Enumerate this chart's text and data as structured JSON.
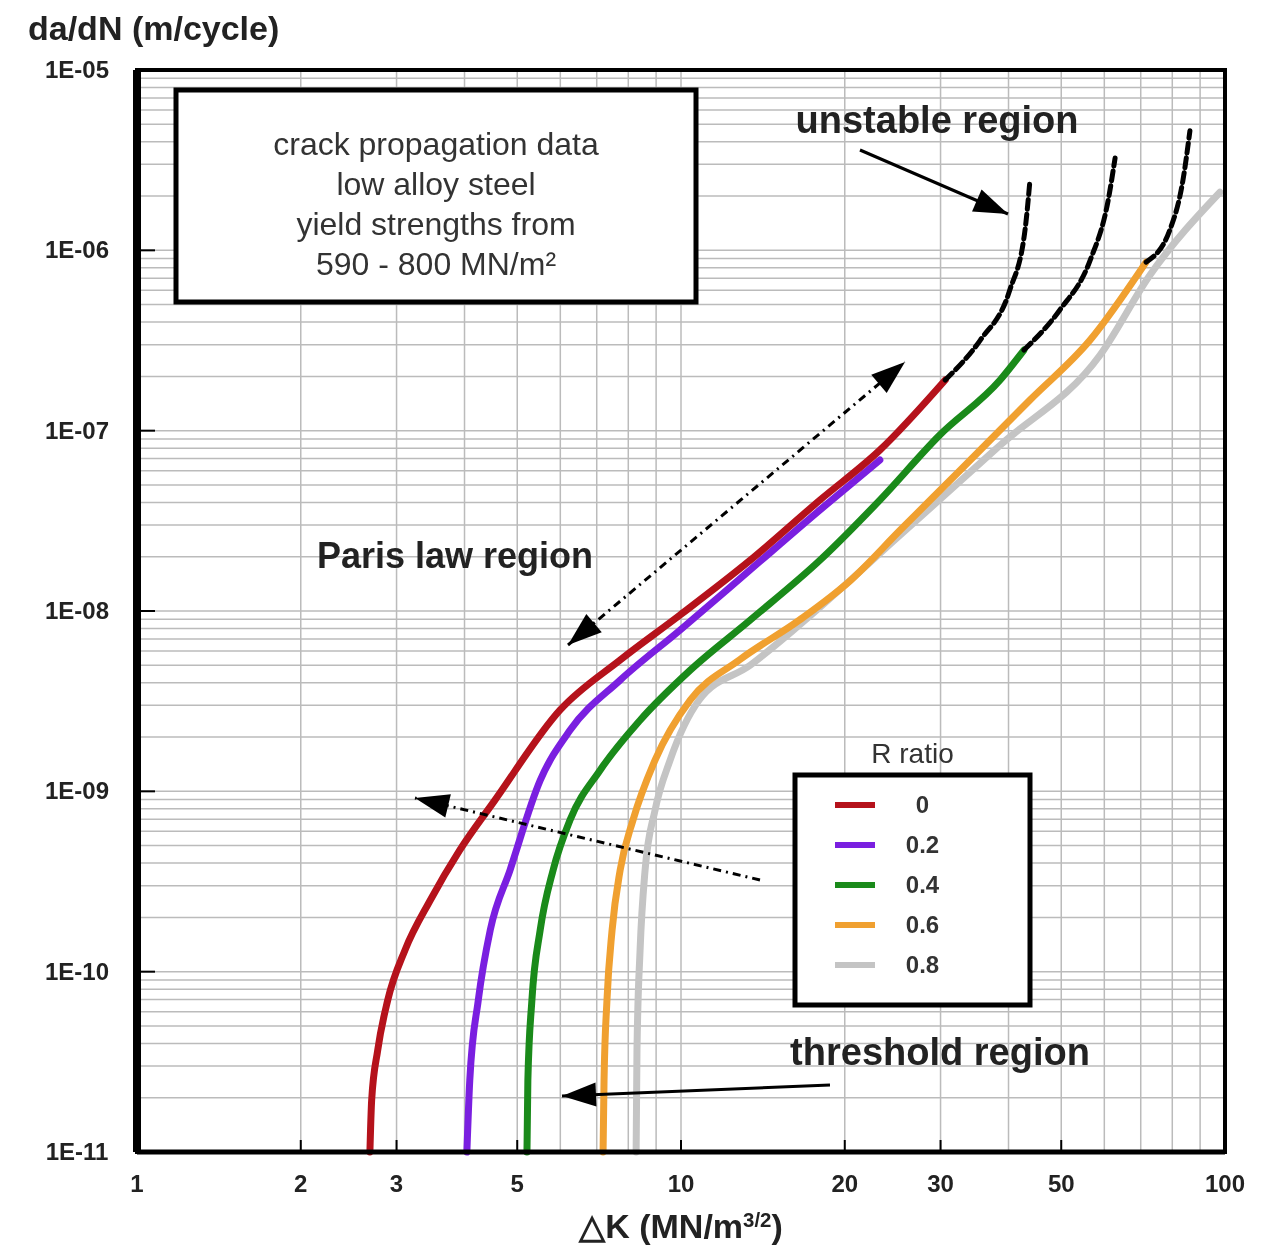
{
  "chart_data": {
    "type": "line",
    "xlabel": "△K  (MN/m$^{3/2}$)",
    "ylabel": "da/dN (m/cycle)",
    "legend_title": "R ratio",
    "legend": "bottom right",
    "log": "xy",
    "grid": true,
    "xlim": [
      1,
      100
    ],
    "ylim": [
      1e-11,
      1e-05
    ],
    "xticks": [
      1,
      2,
      3,
      5,
      10,
      20,
      30,
      50,
      100
    ],
    "yticks": [
      {
        "value": 1e-11,
        "label": "1E-11"
      },
      {
        "value": 1e-10,
        "label": "1E-10"
      },
      {
        "value": 1e-09,
        "label": "1E-09"
      },
      {
        "value": 1e-08,
        "label": "1E-08"
      },
      {
        "value": 1e-07,
        "label": "1E-07"
      },
      {
        "value": 1e-06,
        "label": "1E-06"
      },
      {
        "value": 1e-05,
        "label": "1E-05"
      }
    ],
    "annotations": [
      "crack propagation data\nlow alloy steel\nyield strengths from\n590 - 800 MN/m²",
      "unstable region",
      "Paris law region",
      "threshold region"
    ],
    "series": [
      {
        "name": "0.8",
        "color": "#c4c4c4",
        "x": [
          8.27,
          8.3,
          8.41,
          8.59,
          8.96,
          9.55,
          10.8,
          13.4,
          16.5,
          25.3,
          38.6,
          58.9,
          72.8,
          97.9
        ],
        "values": [
          1e-11,
          3.67e-11,
          1.32e-10,
          3.66e-10,
          7.87e-10,
          1.49e-09,
          3.21e-09,
          5e-09,
          8.35e-09,
          2.64e-08,
          8.3e-08,
          2.62e-07,
          7.3e-07,
          2.1e-06
        ]
      },
      {
        "name": "0.6",
        "color": "#f0a030",
        "x": [
          7.19,
          7.22,
          7.31,
          7.47,
          7.73,
          8.16,
          8.96,
          10.4,
          12.8,
          16.5,
          20.5,
          25.3,
          32.6,
          43.8,
          56.5,
          71.6
        ],
        "values": [
          1e-11,
          2.5e-11,
          6.95e-11,
          1.7e-10,
          3.66e-10,
          6.92e-10,
          1.49e-09,
          3.21e-09,
          5.35e-09,
          8.9e-09,
          1.48e-08,
          2.81e-08,
          6.04e-08,
          1.48e-07,
          3.18e-07,
          8.6e-07
        ]
      },
      {
        "name": "0.4",
        "color": "#1a8a1a",
        "x": [
          5.21,
          5.23,
          5.32,
          5.51,
          5.82,
          6.25,
          7.1,
          8.41,
          10.4,
          13.4,
          18,
          23.2,
          29.9,
          38.6,
          42.7
        ],
        "values": [
          1e-11,
          2.5e-11,
          6.95e-11,
          1.7e-10,
          3.66e-10,
          6.92e-10,
          1.31e-09,
          2.48e-09,
          4.7e-09,
          8.9e-09,
          1.91e-08,
          4.12e-08,
          9.46e-08,
          1.91e-07,
          2.8e-07
        ]
      },
      {
        "name": "0.2",
        "color": "#7a1fe0",
        "x": [
          4.04,
          4.09,
          4.24,
          4.46,
          4.85,
          5.51,
          6.25,
          7.73,
          9.96,
          13.4,
          18,
          23.2
        ],
        "values": [
          1e-11,
          2.5e-11,
          6.95e-11,
          1.7e-10,
          3.66e-10,
          1.15e-09,
          2.18e-09,
          4.14e-09,
          7.84e-09,
          1.69e-08,
          3.63e-08,
          6.87e-08
        ]
      },
      {
        "name": "0",
        "color": "#b5121b",
        "x": [
          2.68,
          2.7,
          2.77,
          2.89,
          3.11,
          3.46,
          3.92,
          4.55,
          5.99,
          7.73,
          9.96,
          13.4,
          18,
          23.2,
          30.6
        ],
        "values": [
          1e-11,
          1.94e-11,
          3.67e-11,
          6.95e-11,
          1.32e-10,
          2.49e-10,
          4.72e-10,
          8.94e-10,
          2.82e-09,
          5.35e-09,
          9.5e-09,
          1.91e-08,
          4.12e-08,
          7.8e-08,
          1.91e-07
        ]
      },
      {
        "color": "#000000",
        "line_style": "dashed",
        "x": [
          30.6,
          35.5,
          40.2,
          42.9,
          43.8
        ],
        "values": [
          1.91e-07,
          3.18e-07,
          6e-07,
          1.3e-06,
          2.45e-06
        ]
      },
      {
        "color": "#000000",
        "line_style": "dashed",
        "x": [
          42.7,
          49.7,
          56.5,
          61,
          62.8
        ],
        "values": [
          2.8e-07,
          4.67e-07,
          8.8e-07,
          1.9e-06,
          3.25e-06
        ]
      },
      {
        "color": "#000000",
        "line_style": "dashed",
        "x": [
          71.6,
          79.2,
          83.7,
          86.2
        ],
        "values": [
          8.6e-07,
          1.3e-06,
          2.45e-06,
          4.6e-06
        ]
      }
    ]
  }
}
